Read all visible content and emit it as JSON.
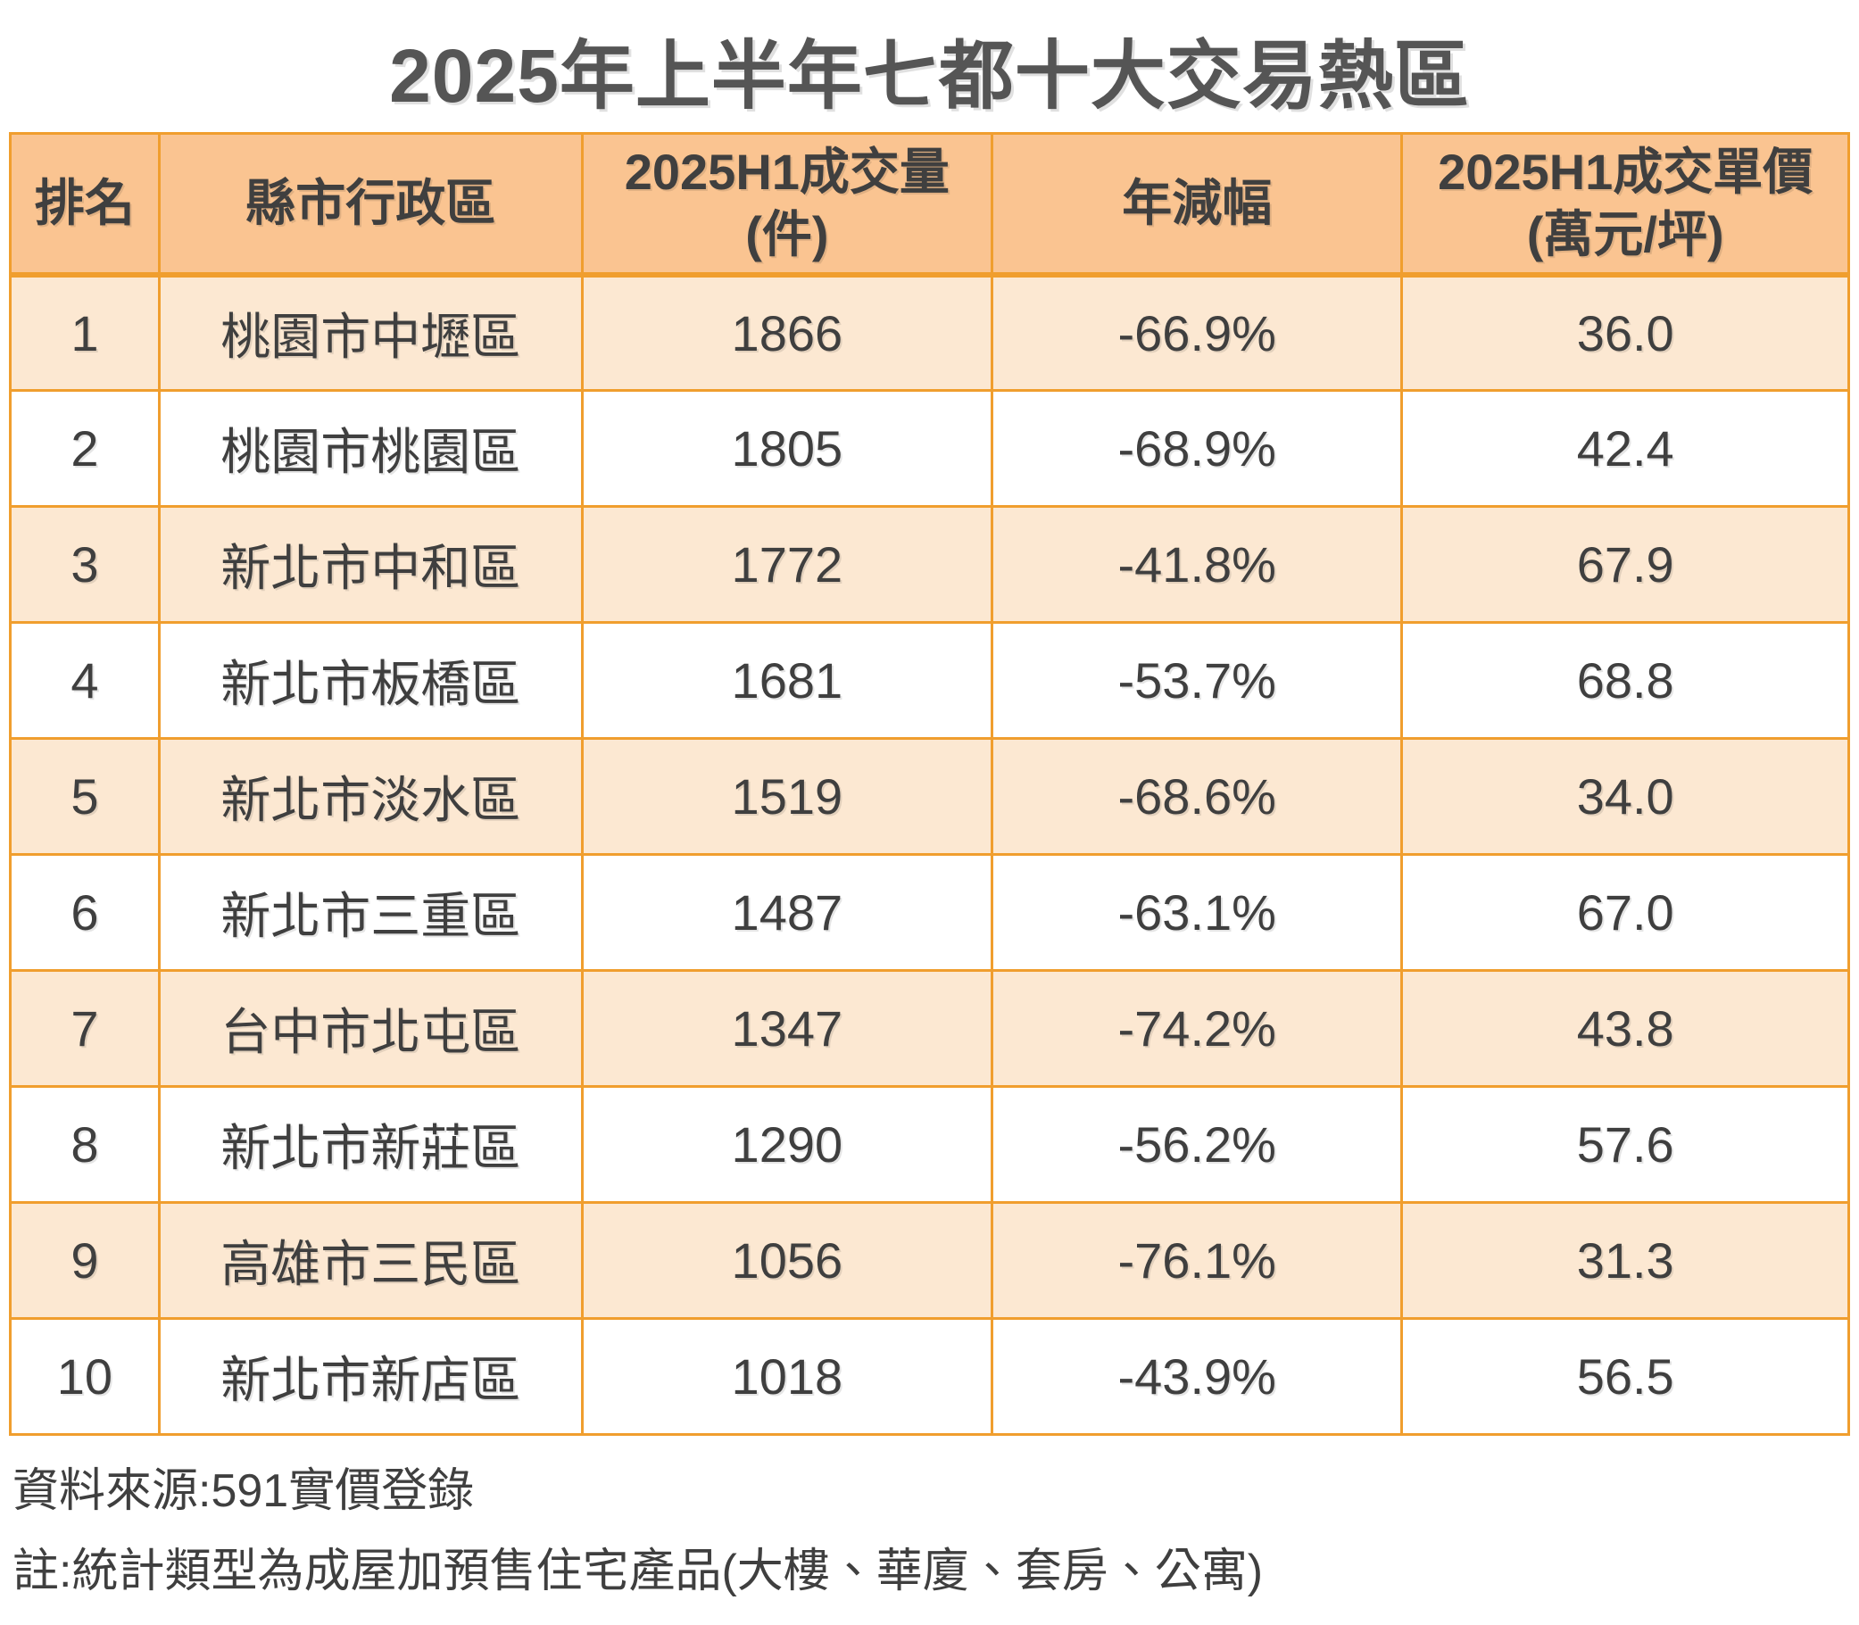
{
  "page": {
    "title": "2025年上半年七都十大交易熱區"
  },
  "table": {
    "headers": [
      "排名",
      "縣市行政區",
      "2025H1成交量\n(件)",
      "年減幅",
      "2025H1成交單價\n(萬元/坪)"
    ],
    "rows": [
      [
        "1",
        "桃園市中壢區",
        "1866",
        "-66.9%",
        "36.0"
      ],
      [
        "2",
        "桃園市桃園區",
        "1805",
        "-68.9%",
        "42.4"
      ],
      [
        "3",
        "新北市中和區",
        "1772",
        "-41.8%",
        "67.9"
      ],
      [
        "4",
        "新北市板橋區",
        "1681",
        "-53.7%",
        "68.8"
      ],
      [
        "5",
        "新北市淡水區",
        "1519",
        "-68.6%",
        "34.0"
      ],
      [
        "6",
        "新北市三重區",
        "1487",
        "-63.1%",
        "67.0"
      ],
      [
        "7",
        "台中市北屯區",
        "1347",
        "-74.2%",
        "43.8"
      ],
      [
        "8",
        "新北市新莊區",
        "1290",
        "-56.2%",
        "57.6"
      ],
      [
        "9",
        "高雄市三民區",
        "1056",
        "-76.1%",
        "31.3"
      ],
      [
        "10",
        "新北市新店區",
        "1018",
        "-43.9%",
        "56.5"
      ]
    ]
  },
  "footer": {
    "source": "資料來源:591實價登錄",
    "note": "註:統計類型為成屋加預售住宅產品(大樓、華廈、套房、公寓)"
  },
  "colors": {
    "header_bg": "#FAC491",
    "odd_row_bg": "#FCE8D2",
    "even_row_bg": "#FFFFFF",
    "border": "#F09E2E",
    "text": "#3F3F3F",
    "title_color": "#555555"
  },
  "chart_data": {
    "type": "table",
    "title": "2025年上半年七都十大交易熱區",
    "columns": [
      "排名",
      "縣市行政區",
      "2025H1成交量(件)",
      "年減幅",
      "2025H1成交單價(萬元/坪)"
    ],
    "rows": [
      [
        1,
        "桃園市中壢區",
        1866,
        -66.9,
        36.0
      ],
      [
        2,
        "桃園市桃園區",
        1805,
        -68.9,
        42.4
      ],
      [
        3,
        "新北市中和區",
        1772,
        -41.8,
        67.9
      ],
      [
        4,
        "新北市板橋區",
        1681,
        -53.7,
        68.8
      ],
      [
        5,
        "新北市淡水區",
        1519,
        -68.6,
        34.0
      ],
      [
        6,
        "新北市三重區",
        1487,
        -63.1,
        67.0
      ],
      [
        7,
        "台中市北屯區",
        1347,
        -74.2,
        43.8
      ],
      [
        8,
        "新北市新莊區",
        1290,
        -56.2,
        57.6
      ],
      [
        9,
        "高雄市三民區",
        1056,
        -76.1,
        31.3
      ],
      [
        10,
        "新北市新店區",
        1018,
        -43.9,
        56.5
      ]
    ],
    "units": {
      "成交量": "件",
      "年減幅": "%",
      "成交單價": "萬元/坪"
    },
    "source": "591實價登錄"
  }
}
